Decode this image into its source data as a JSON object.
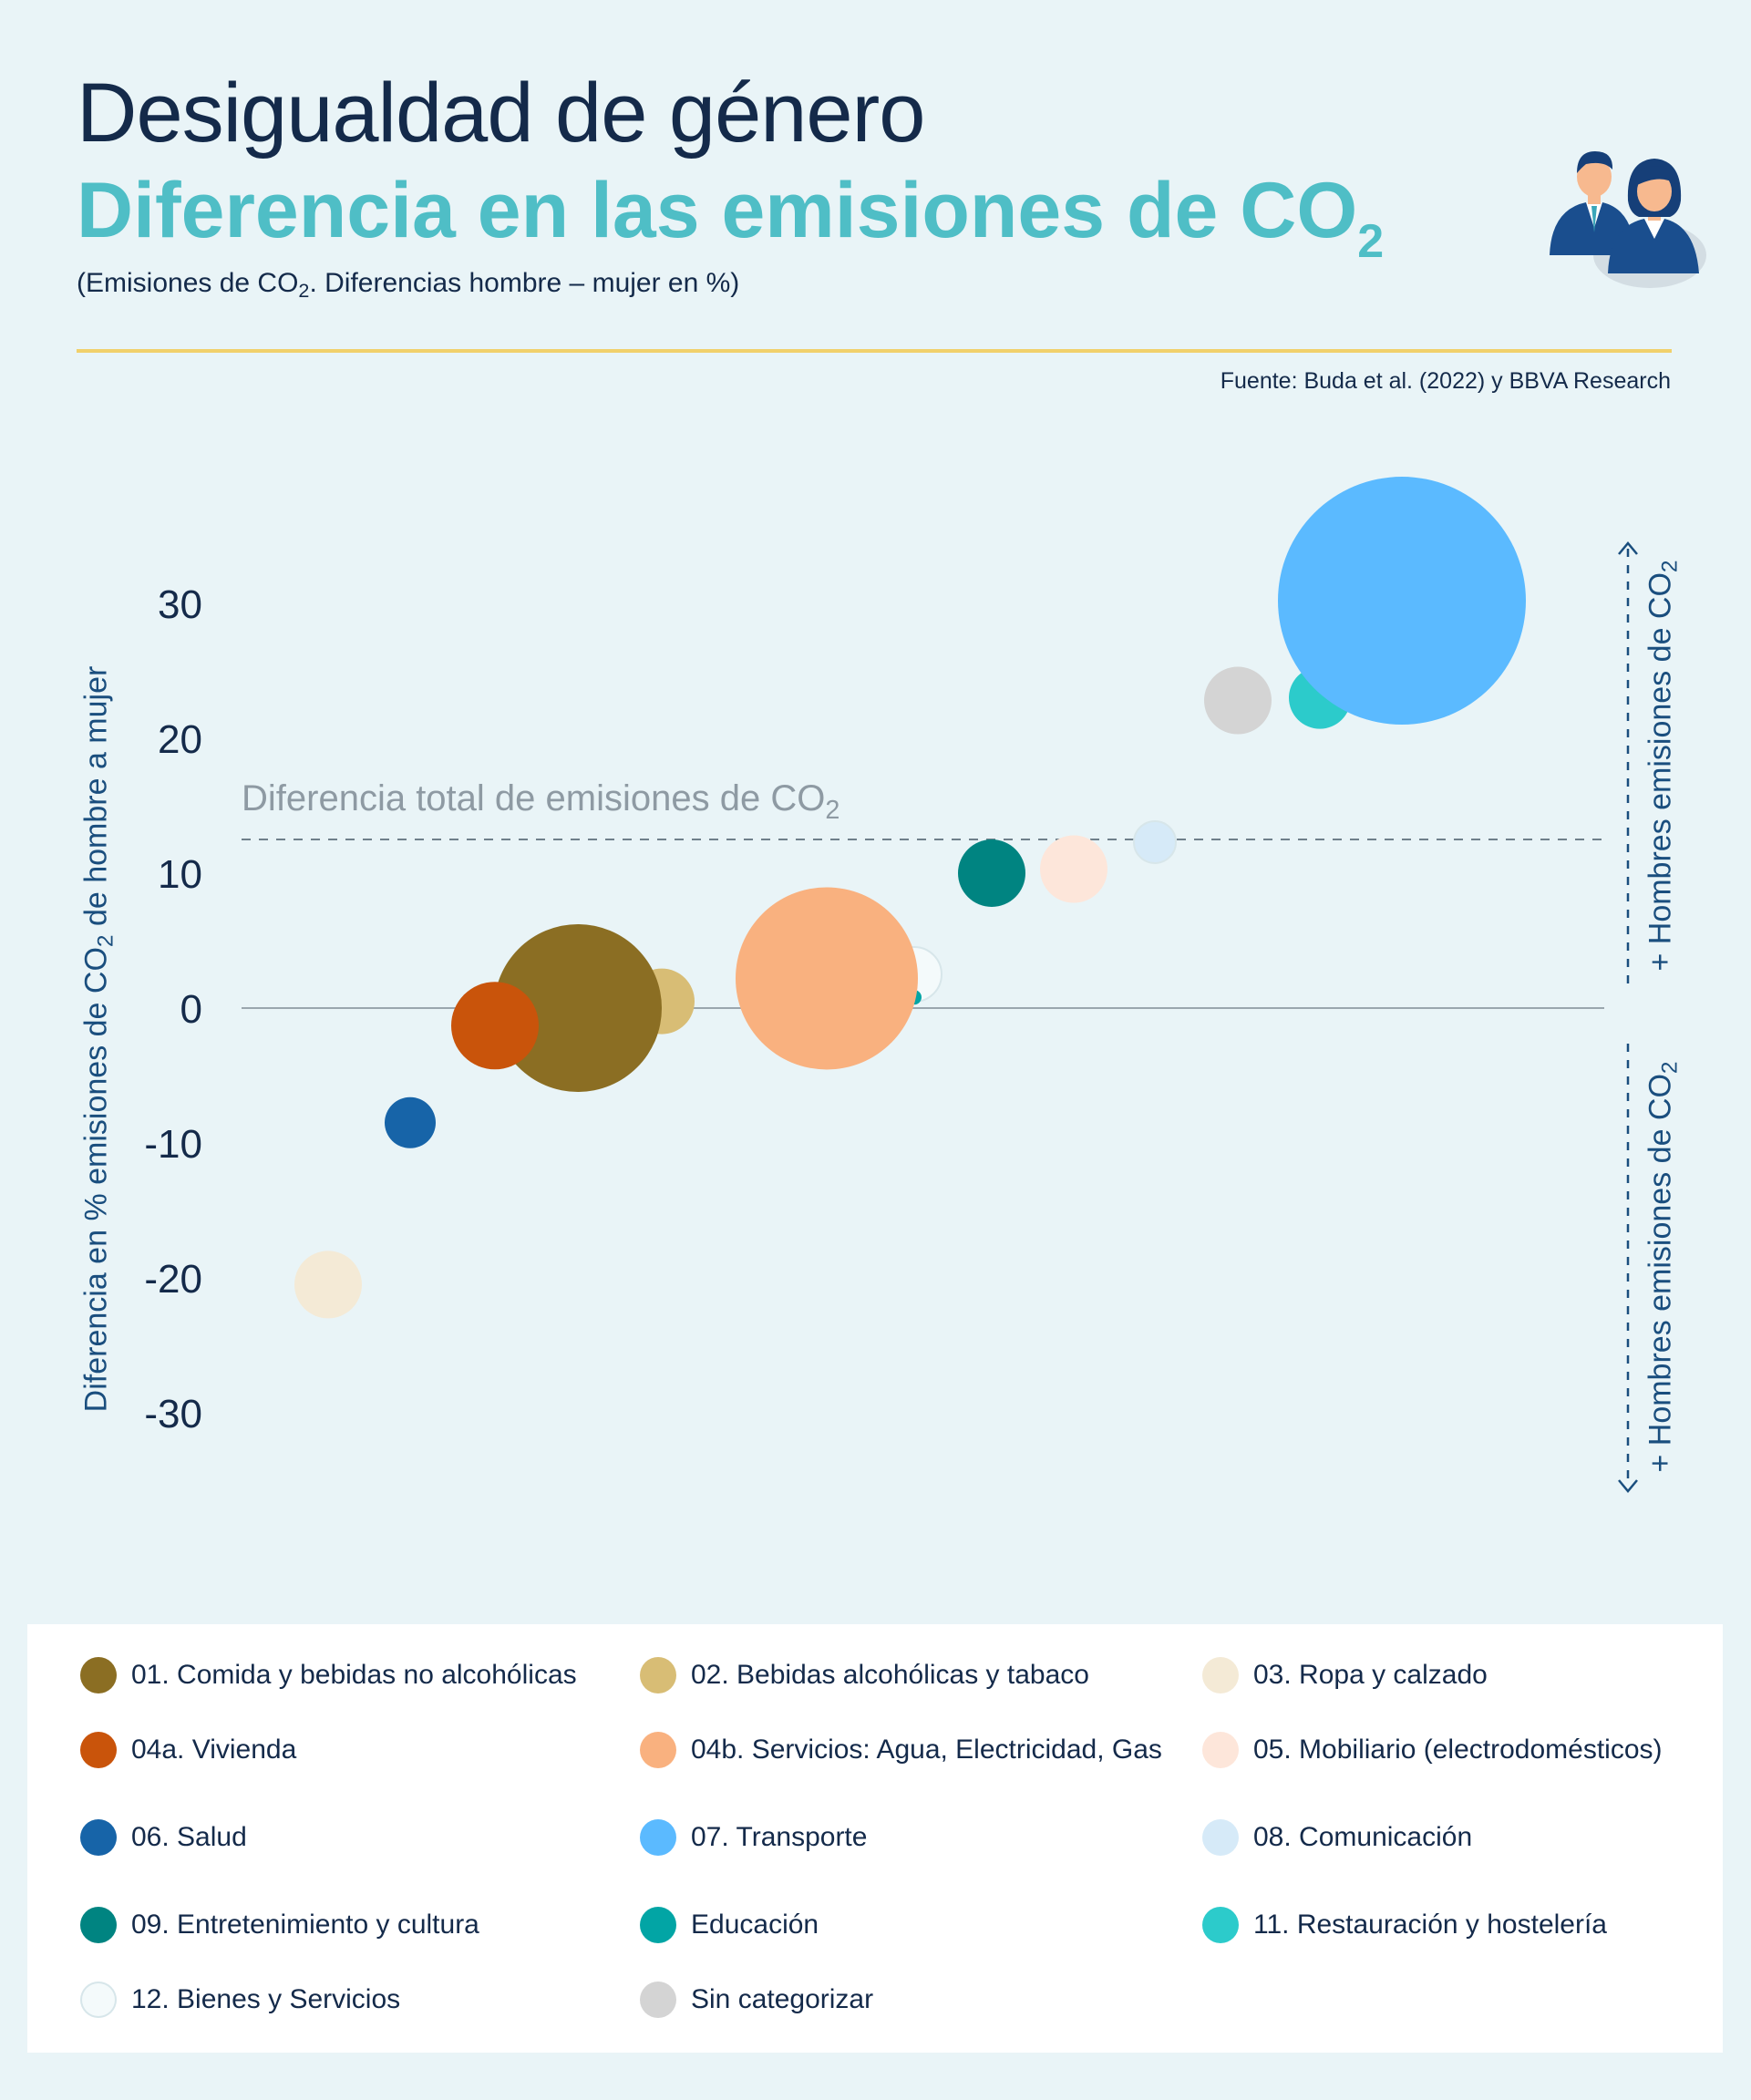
{
  "header": {
    "title_line1": "Desigualdad de género",
    "title_line2": "Diferencia en las emisiones de CO",
    "title_line2_sub": "2",
    "subtitle_pre": "(Emisiones de CO",
    "subtitle_sub": "2",
    "subtitle_post": ". Diferencias hombre – mujer en %)",
    "source": "Fuente: Buda et al. (2022) y BBVA Research",
    "icon": "businessman-businesswoman-icon"
  },
  "colors": {
    "background": "#e9f4f7",
    "title_dark": "#142a4a",
    "title_accent": "#4fbec6",
    "rule": "#f1d06b",
    "axis_text": "#1a4e7e"
  },
  "chart_data": {
    "type": "scatter",
    "subtype": "bubble",
    "ylabel_pre": "Diferencia en % emisiones de CO",
    "ylabel_sub": "2",
    "ylabel_post": " de hombre a mujer",
    "ylim": [
      -30,
      30
    ],
    "yticks": [
      "30",
      "20",
      "10",
      "0",
      "-10",
      "-20",
      "-30"
    ],
    "ytick_values": [
      30,
      20,
      10,
      0,
      -10,
      -20,
      -30
    ],
    "grid": false,
    "zero_line": true,
    "reference_line": {
      "value": 12.5,
      "label_pre": "Diferencia total de emisiones de CO",
      "label_sub": "2"
    },
    "side_labels": {
      "top_pre": "+ Hombres emisiones de CO",
      "top_sub": "2",
      "bottom_pre": "+ Hombres emisiones de CO",
      "bottom_sub": "2"
    },
    "legend_position": "bottom",
    "series": [
      {
        "name": "01. Comida y bebidas no alcohólicas",
        "color": "#8b6e23",
        "rank": 4,
        "y": 0,
        "size": 92
      },
      {
        "name": "02. Bebidas alcohólicas y tabaco",
        "color": "#d8bd75",
        "rank": 5,
        "y": 0.5,
        "size": 36
      },
      {
        "name": "03. Ropa y calzado",
        "color": "#f4ead6",
        "rank": 1,
        "y": -20.5,
        "size": 37
      },
      {
        "name": "04a. Vivienda",
        "color": "#c9540b",
        "rank": 3,
        "y": -1.3,
        "size": 48
      },
      {
        "name": "04b. Servicios: Agua, Electricidad, Gas",
        "color": "#f9b17f",
        "rank": 6,
        "y": 2.2,
        "size": 100
      },
      {
        "name": "05. Mobiliario (electrodomésticos)",
        "color": "#fde6da",
        "rank": 9,
        "y": 10.3,
        "size": 37
      },
      {
        "name": "06. Salud",
        "color": "#1764a8",
        "rank": 2,
        "y": -8.5,
        "size": 28
      },
      {
        "name": "07. Transporte",
        "color": "#5bbaff",
        "rank": 12,
        "y": 30.2,
        "size": 136
      },
      {
        "name": "08. Comunicación",
        "color": "#d6eaf8",
        "rank": 10,
        "y": 12.3,
        "size": 23
      },
      {
        "name": "09. Entretenimiento y cultura",
        "color": "#008481",
        "rank": 8,
        "y": 10,
        "size": 37
      },
      {
        "name": "Educación",
        "color": "#02a5a5",
        "rank": 7,
        "y": 0.8,
        "size": 8
      },
      {
        "name": "11. Restauración y hostelería",
        "color": "#2ccbcb",
        "rank": 11,
        "y": 23,
        "size": 34
      },
      {
        "name": "12. Bienes y Servicios",
        "color": "#f4fafb",
        "rank": 7,
        "y": 2.5,
        "size": 30
      },
      {
        "name": "Sin categorizar",
        "color": "#d4d4d4",
        "rank": 11,
        "y": 22.8,
        "size": 37
      }
    ]
  }
}
